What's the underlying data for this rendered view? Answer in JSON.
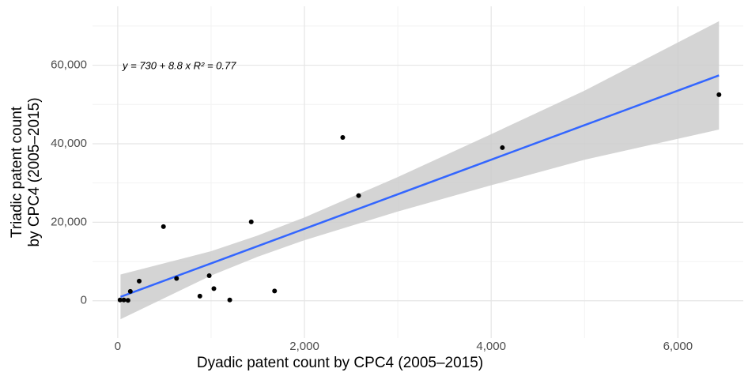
{
  "chart_data": {
    "type": "scatter",
    "xlabel": "Dyadic patent count by CPC4 (2005–2015)",
    "ylabel": [
      "Triadic patent count",
      "by CPC4 (2005–2015)"
    ],
    "annotation": "y = 730 + 8.8 x R² = 0.77",
    "x": [
      25,
      65,
      110,
      135,
      230,
      490,
      630,
      880,
      980,
      1030,
      1200,
      1430,
      1680,
      2410,
      2580,
      4120,
      6440
    ],
    "values": [
      200,
      200,
      100,
      2400,
      5000,
      18900,
      5700,
      1200,
      6400,
      3100,
      200,
      20100,
      2500,
      41600,
      26800,
      39000,
      52500
    ],
    "color": "#000000",
    "fit": {
      "color": "#3366ff",
      "band_color": "#cccccc",
      "x": [
        30,
        1000,
        1500,
        2000,
        3000,
        4000,
        5000,
        6440
      ],
      "values": [
        994,
        9530,
        13930,
        18330,
        27130,
        35930,
        44730,
        57402
      ],
      "upper": [
        6694,
        12630,
        16630,
        21230,
        31530,
        42430,
        53530,
        71202
      ],
      "lower": [
        -4706,
        6430,
        11230,
        15430,
        22730,
        29430,
        35930,
        43602
      ]
    },
    "xlim": [
      -270,
      6700
    ],
    "ylim": [
      -9500,
      75000
    ],
    "xticks": [
      0,
      {
        "value": 2000,
        "label": "2,000"
      },
      {
        "value": 4000,
        "label": "4,000"
      },
      {
        "value": 6000,
        "label": "6,000"
      }
    ],
    "yticks": [
      0,
      {
        "value": 20000,
        "label": "20,000"
      },
      {
        "value": 40000,
        "label": "40,000"
      },
      {
        "value": 60000,
        "label": "60,000"
      }
    ],
    "minor_xticks": [
      1000,
      3000,
      5000
    ],
    "minor_yticks": [
      10000,
      30000,
      50000,
      70000
    ],
    "grid": true
  }
}
